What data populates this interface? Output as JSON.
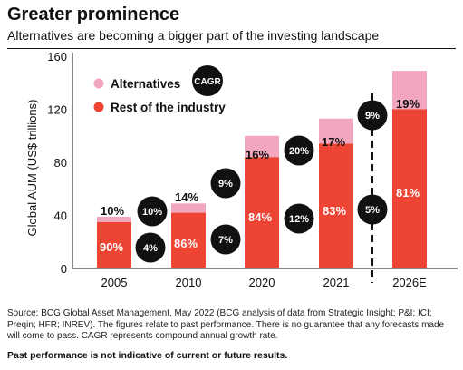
{
  "header": {
    "title": "Greater prominence",
    "subtitle": "Alternatives are becoming a bigger part of the investing landscape"
  },
  "chart_data": {
    "type": "bar",
    "stacked": true,
    "ylabel": "Global AUM (US$ trillions)",
    "ylim": [
      0,
      160
    ],
    "yticks": [
      0,
      40,
      80,
      120,
      160
    ],
    "grid": false,
    "legend_position": "top-left",
    "categories": [
      "2005",
      "2010",
      "2020",
      "2021",
      "2026E"
    ],
    "series": [
      {
        "name": "Rest of the industry",
        "color": "#ee4433",
        "values": [
          35,
          42,
          84,
          94,
          120
        ],
        "labels": [
          "90%",
          "86%",
          "84%",
          "83%",
          "81%"
        ]
      },
      {
        "name": "Alternatives",
        "color": "#f2a7be",
        "values": [
          4,
          7,
          16,
          19,
          29
        ],
        "labels": [
          "10%",
          "14%",
          "16%",
          "17%",
          "19%"
        ]
      }
    ],
    "cagr_badge": "CAGR",
    "cagr": {
      "alternatives": [
        "10%",
        "9%",
        "20%",
        "9%"
      ],
      "rest": [
        "4%",
        "7%",
        "12%",
        "5%"
      ]
    },
    "projection_divider_after": "2021"
  },
  "footer": {
    "source": "Source: BCG Global Asset Management, May 2022 (BCG analysis of data from Strategic Insight; P&I; ICI; Preqin; HFR; INREV). The figures relate to past performance. There is no guarantee that any forecasts made will come to pass.  CAGR represents compound annual growth rate.",
    "disclaimer": "Past performance is not indicative of current or future results."
  }
}
